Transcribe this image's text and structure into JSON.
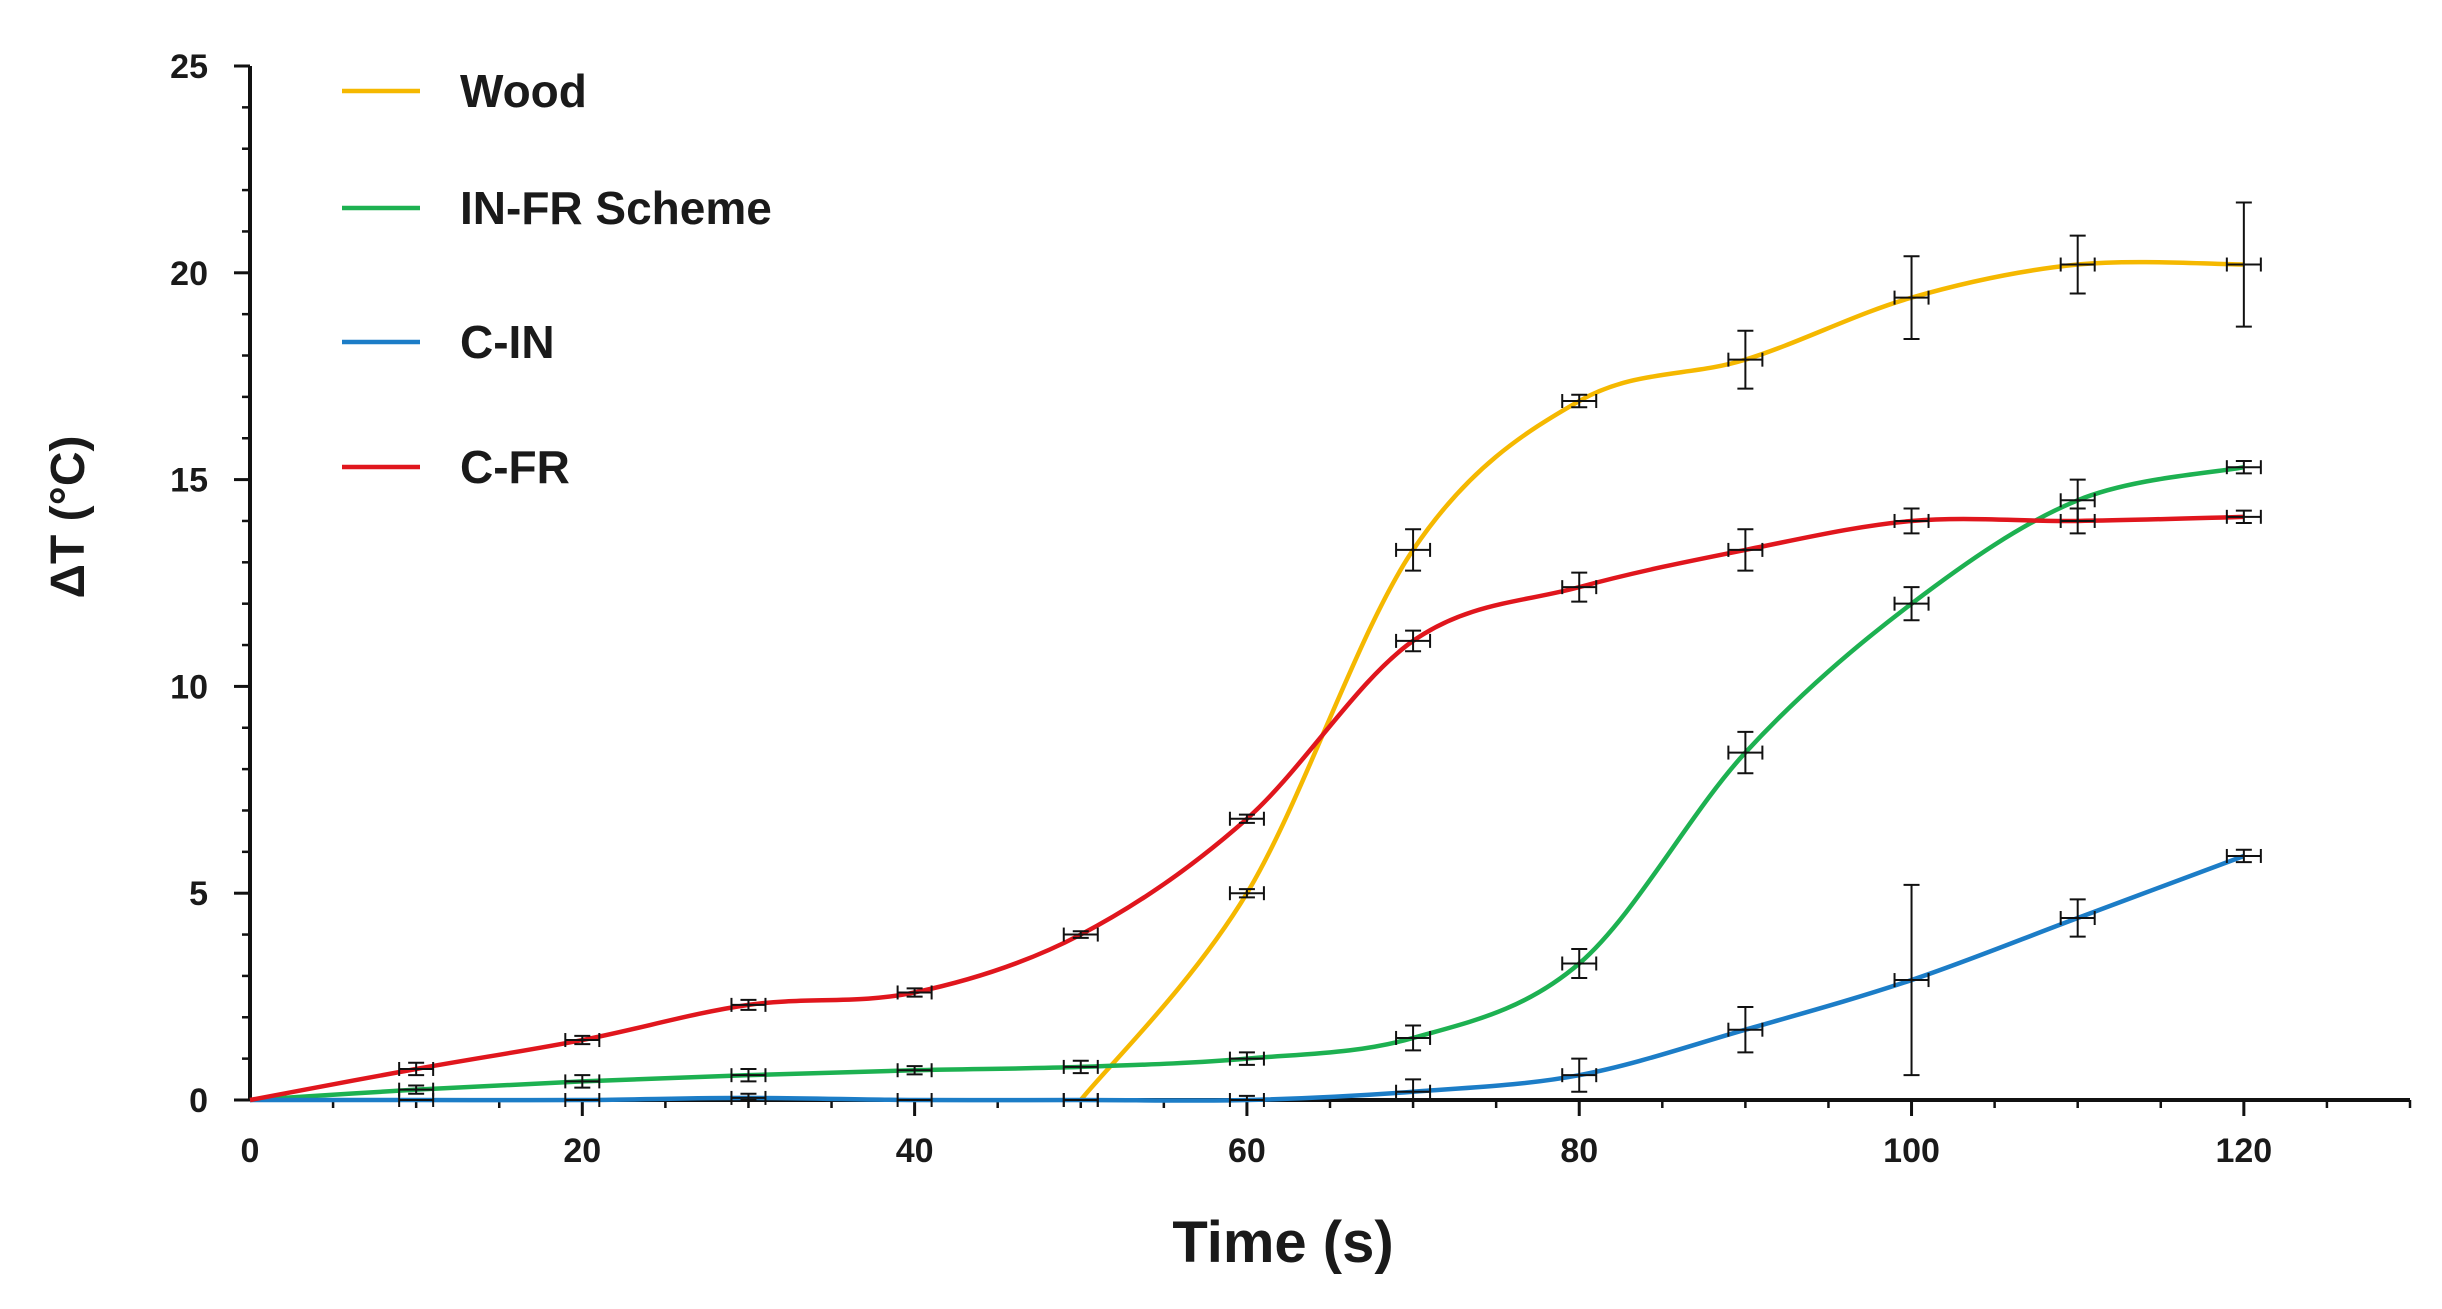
{
  "chart_data": {
    "type": "line",
    "title": "",
    "xlabel": "Time (s)",
    "ylabel": "ΔT (°C)",
    "xlim": [
      0,
      130
    ],
    "ylim": [
      0,
      25
    ],
    "xticks": [
      0,
      20,
      40,
      60,
      80,
      100,
      120
    ],
    "yticks": [
      0,
      5,
      10,
      15,
      20,
      25
    ],
    "grid": false,
    "legend_position": "top-left",
    "series": [
      {
        "name": "Wood",
        "color": "#F5B800",
        "x": [
          50,
          60,
          70,
          80,
          90,
          100,
          110,
          120
        ],
        "y": [
          0,
          5.0,
          13.3,
          16.9,
          17.9,
          19.4,
          20.2,
          20.2
        ],
        "y_err": [
          0,
          0.1,
          0.5,
          0.15,
          0.7,
          1.0,
          0.7,
          1.5
        ]
      },
      {
        "name": "IN-FR Scheme",
        "color": "#1DB151",
        "x": [
          0,
          10,
          20,
          30,
          40,
          50,
          60,
          70,
          80,
          90,
          100,
          110,
          120
        ],
        "y": [
          0,
          0.25,
          0.45,
          0.6,
          0.72,
          0.8,
          1.0,
          1.5,
          3.3,
          8.4,
          12.0,
          14.5,
          15.3
        ],
        "y_err": [
          0,
          0.1,
          0.15,
          0.15,
          0.1,
          0.15,
          0.15,
          0.3,
          0.35,
          0.5,
          0.4,
          0.5,
          0.15
        ]
      },
      {
        "name": "C-IN",
        "color": "#1C7DC7",
        "x": [
          0,
          10,
          20,
          30,
          40,
          50,
          60,
          70,
          80,
          90,
          100,
          110,
          120
        ],
        "y": [
          0,
          0,
          0,
          0.05,
          0,
          0,
          0,
          0.2,
          0.6,
          1.7,
          2.9,
          4.4,
          5.9
        ],
        "y_err": [
          0,
          0,
          0,
          0.1,
          0,
          0,
          0.1,
          0.3,
          0.4,
          0.55,
          2.3,
          0.45,
          0.15
        ]
      },
      {
        "name": "C-FR",
        "color": "#E0161D",
        "x": [
          0,
          10,
          20,
          30,
          40,
          50,
          60,
          70,
          80,
          90,
          100,
          110,
          120
        ],
        "y": [
          0,
          0.75,
          1.45,
          2.3,
          2.6,
          4.0,
          6.8,
          11.1,
          12.4,
          13.3,
          14.0,
          14.0,
          14.1
        ],
        "y_err": [
          0,
          0.15,
          0.1,
          0.12,
          0.1,
          0.08,
          0.1,
          0.25,
          0.35,
          0.5,
          0.3,
          0.3,
          0.15
        ]
      }
    ]
  }
}
